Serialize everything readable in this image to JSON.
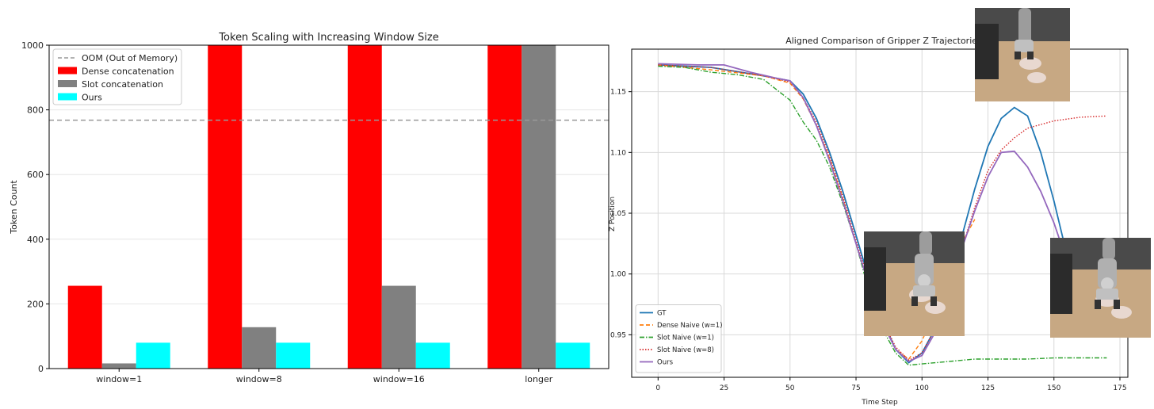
{
  "chart_data": [
    {
      "type": "bar",
      "title": "Token Scaling with Increasing Window Size",
      "xlabel": "",
      "ylabel": "Token Count",
      "ylim": [
        0,
        1000
      ],
      "yticks": [
        0,
        200,
        400,
        600,
        800,
        1000
      ],
      "categories": [
        "window=1",
        "window=8",
        "window=16",
        "longer"
      ],
      "series": [
        {
          "name": "Dense concatenation",
          "color": "#ff0000",
          "values": [
            256,
            1000,
            1000,
            1000
          ]
        },
        {
          "name": "Slot concatenation",
          "color": "#808080",
          "values": [
            16,
            128,
            256,
            1000
          ]
        },
        {
          "name": "Ours",
          "color": "#00ffff",
          "values": [
            80,
            80,
            80,
            80
          ]
        }
      ],
      "reference_lines": [
        {
          "name": "OOM (Out of Memory)",
          "y": 768,
          "color": "#999999",
          "style": "dashed"
        }
      ],
      "grid": true,
      "legend": "top-left"
    },
    {
      "type": "line",
      "title": "Aligned Comparison of Gripper Z Trajectories",
      "xlabel": "Time Step",
      "ylabel": "Z Position",
      "xlim": [
        -10,
        178
      ],
      "ylim": [
        0.915,
        1.185
      ],
      "xticks": [
        0,
        25,
        50,
        75,
        100,
        125,
        150,
        175
      ],
      "yticks": [
        0.95,
        1.0,
        1.05,
        1.1,
        1.15
      ],
      "ytick_labels": [
        "0.95",
        "1.00",
        "1.05",
        "1.10",
        "1.15"
      ],
      "grid": true,
      "legend": "bottom-left",
      "series": [
        {
          "name": "GT",
          "color": "#1f77b4",
          "style": "solid",
          "x": [
            0,
            20,
            40,
            50,
            55,
            60,
            65,
            70,
            75,
            80,
            85,
            90,
            95,
            100,
            105,
            110,
            115,
            120,
            125,
            130,
            135,
            140,
            145,
            150,
            155
          ],
          "y": [
            1.172,
            1.17,
            1.163,
            1.159,
            1.148,
            1.128,
            1.1,
            1.068,
            1.032,
            0.995,
            0.962,
            0.938,
            0.927,
            0.935,
            0.955,
            0.99,
            1.03,
            1.07,
            1.105,
            1.128,
            1.137,
            1.13,
            1.1,
            1.06,
            1.015
          ]
        },
        {
          "name": "Dense Naive (w=1)",
          "color": "#ff7f0e",
          "style": "dashed",
          "x": [
            0,
            20,
            40,
            50,
            55,
            60,
            65,
            70,
            75,
            80,
            85,
            90,
            95,
            100,
            105,
            110,
            115,
            120
          ],
          "y": [
            1.172,
            1.168,
            1.163,
            1.157,
            1.144,
            1.122,
            1.095,
            1.062,
            1.025,
            0.99,
            0.96,
            0.938,
            0.93,
            0.945,
            0.97,
            1.0,
            1.025,
            1.045
          ]
        },
        {
          "name": "Slot Naive (w=1)",
          "color": "#2ca02c",
          "style": "dashdot",
          "x": [
            0,
            10,
            20,
            30,
            40,
            50,
            55,
            60,
            65,
            70,
            75,
            80,
            85,
            90,
            95,
            100,
            110,
            120,
            130,
            140,
            150,
            160,
            170
          ],
          "y": [
            1.171,
            1.17,
            1.166,
            1.164,
            1.16,
            1.143,
            1.125,
            1.11,
            1.088,
            1.058,
            1.025,
            0.985,
            0.955,
            0.935,
            0.925,
            0.926,
            0.928,
            0.93,
            0.93,
            0.93,
            0.931,
            0.931,
            0.931
          ]
        },
        {
          "name": "Slot Naive (w=8)",
          "color": "#d62728",
          "style": "dotted",
          "x": [
            0,
            20,
            40,
            50,
            55,
            60,
            65,
            70,
            75,
            80,
            85,
            90,
            95,
            100,
            105,
            110,
            115,
            120,
            125,
            130,
            135,
            140,
            150,
            160,
            170
          ],
          "y": [
            1.172,
            1.17,
            1.163,
            1.158,
            1.145,
            1.125,
            1.097,
            1.064,
            1.028,
            0.992,
            0.962,
            0.94,
            0.929,
            0.935,
            0.955,
            0.985,
            1.02,
            1.055,
            1.085,
            1.102,
            1.112,
            1.12,
            1.126,
            1.129,
            1.13
          ]
        },
        {
          "name": "Ours",
          "color": "#9467bd",
          "style": "solid",
          "x": [
            0,
            15,
            25,
            35,
            45,
            50,
            55,
            60,
            65,
            70,
            75,
            80,
            85,
            90,
            95,
            100,
            105,
            110,
            115,
            120,
            125,
            130,
            135,
            140,
            145,
            150,
            155
          ],
          "y": [
            1.173,
            1.172,
            1.172,
            1.166,
            1.161,
            1.159,
            1.145,
            1.122,
            1.093,
            1.06,
            1.025,
            0.99,
            0.96,
            0.938,
            0.928,
            0.933,
            0.952,
            0.985,
            1.02,
            1.052,
            1.08,
            1.1,
            1.101,
            1.088,
            1.068,
            1.042,
            1.01
          ]
        }
      ]
    }
  ]
}
